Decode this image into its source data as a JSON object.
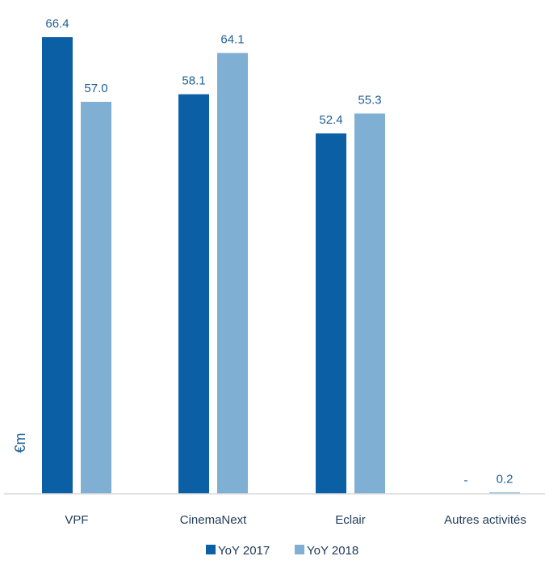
{
  "chart_data": {
    "type": "bar",
    "categories": [
      "VPF",
      "CinemaNext",
      "Eclair",
      "Autres activités"
    ],
    "series": [
      {
        "name": "YoY 2017",
        "values": [
          66.4,
          58.1,
          52.4,
          null
        ],
        "labels": [
          "66.4",
          "58.1",
          "52.4",
          "-"
        ],
        "color": "#0b5fa5"
      },
      {
        "name": "YoY 2018",
        "values": [
          57.0,
          64.1,
          55.3,
          0.2
        ],
        "labels": [
          "57.0",
          "64.1",
          "55.3",
          "0.2"
        ],
        "color": "#7fb0d4"
      }
    ],
    "title": "",
    "xlabel": "",
    "ylabel": "€m",
    "ylim": [
      0,
      66.4
    ],
    "grid": false,
    "legend_position": "bottom",
    "axis_color": "#d9d9d9"
  }
}
